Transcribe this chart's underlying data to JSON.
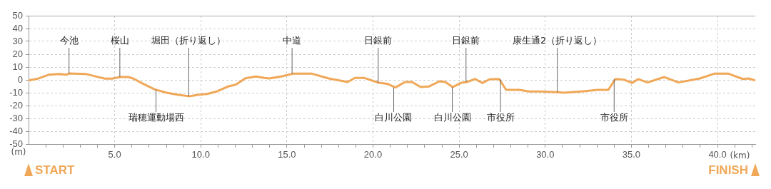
{
  "chart_data": {
    "type": "line",
    "xlabel": "(km)",
    "ylabel": "(m)",
    "x": [
      0,
      0.55,
      1.17,
      1.79,
      2.2,
      2.35,
      3.32,
      3.6,
      4.43,
      4.84,
      5.32,
      5.81,
      6.09,
      6.64,
      7.33,
      8.02,
      8.71,
      9.34,
      9.82,
      10.37,
      10.93,
      11.62,
      12.03,
      12.59,
      13.2,
      13.7,
      13.97,
      14.66,
      15.35,
      16.46,
      17.43,
      18.53,
      18.95,
      19.5,
      20.33,
      20.82,
      21.3,
      21.86,
      22.27,
      22.76,
      23.24,
      23.86,
      24.2,
      24.62,
      25.1,
      25.45,
      25.93,
      26.35,
      26.76,
      27.32,
      27.73,
      28.5,
      29.05,
      29.6,
      30.71,
      31.1,
      32.35,
      33.04,
      33.66,
      34.08,
      34.56,
      35.05,
      35.39,
      35.94,
      36.91,
      37.74,
      38.98,
      39.81,
      40.64,
      41.47,
      41.82,
      42.195
    ],
    "series": [
      {
        "color": "#f0a858",
        "values": [
          -0.4,
          1,
          4,
          4.6,
          4,
          5,
          4.6,
          3.7,
          1,
          1,
          2.2,
          2.2,
          1,
          -3,
          -7.4,
          -10,
          -11.7,
          -12.8,
          -11.7,
          -11,
          -9,
          -5,
          -3.7,
          1.3,
          2.6,
          1.5,
          1.1,
          2.6,
          4.8,
          4.8,
          1.1,
          -1.7,
          1.5,
          1.5,
          -2.2,
          -3,
          -5.9,
          -1.7,
          -1.7,
          -5.6,
          -5.2,
          -1.1,
          -1.7,
          -5.6,
          -2.4,
          -1.7,
          0.7,
          -2.4,
          0.4,
          0.7,
          -7.8,
          -7.8,
          -9,
          -9,
          -9.6,
          -10,
          -8.7,
          -7.8,
          -7.8,
          0.7,
          0.2,
          -2.4,
          0.6,
          -2,
          2.2,
          -2,
          1.1,
          4.8,
          4.8,
          0.7,
          1.1,
          -0.4
        ]
      }
    ],
    "xlim": [
      0,
      42.195
    ],
    "xticks": [
      {
        "value": 1,
        "label": null
      },
      {
        "value": 2,
        "label": null
      },
      {
        "value": 3,
        "label": null
      },
      {
        "value": 4,
        "label": null
      },
      {
        "value": 5,
        "label": "5.0"
      },
      {
        "value": 6,
        "label": null
      },
      {
        "value": 7,
        "label": null
      },
      {
        "value": 8,
        "label": null
      },
      {
        "value": 9,
        "label": null
      },
      {
        "value": 10,
        "label": "10.0"
      },
      {
        "value": 11,
        "label": null
      },
      {
        "value": 12,
        "label": null
      },
      {
        "value": 13,
        "label": null
      },
      {
        "value": 14,
        "label": null
      },
      {
        "value": 15,
        "label": "15.0"
      },
      {
        "value": 16,
        "label": null
      },
      {
        "value": 17,
        "label": null
      },
      {
        "value": 18,
        "label": null
      },
      {
        "value": 19,
        "label": null
      },
      {
        "value": 20,
        "label": "20.0"
      },
      {
        "value": 21,
        "label": null
      },
      {
        "value": 22,
        "label": null
      },
      {
        "value": 23,
        "label": null
      },
      {
        "value": 24,
        "label": null
      },
      {
        "value": 25,
        "label": "25.0"
      },
      {
        "value": 26,
        "label": null
      },
      {
        "value": 27,
        "label": null
      },
      {
        "value": 28,
        "label": null
      },
      {
        "value": 29,
        "label": null
      },
      {
        "value": 30,
        "label": "30.0"
      },
      {
        "value": 31,
        "label": null
      },
      {
        "value": 32,
        "label": null
      },
      {
        "value": 33,
        "label": null
      },
      {
        "value": 34,
        "label": null
      },
      {
        "value": 35,
        "label": "35.0"
      },
      {
        "value": 36,
        "label": null
      },
      {
        "value": 37,
        "label": null
      },
      {
        "value": 38,
        "label": null
      },
      {
        "value": 39,
        "label": null
      },
      {
        "value": 40,
        "label": "40.0"
      },
      {
        "value": 41,
        "label": null
      },
      {
        "value": 42,
        "label": null
      }
    ],
    "ylim": [
      -50,
      50
    ],
    "yticks": [
      -50,
      -40,
      -30,
      -20,
      -10,
      0,
      10,
      20,
      30,
      40,
      50
    ],
    "grid": true,
    "legend": false,
    "marker": "none",
    "line_style": "solid",
    "annotations": [
      {
        "text": "今池",
        "x": 2.35,
        "y": 5
      },
      {
        "text": "桜山",
        "x": 5.3,
        "y": 2.2
      },
      {
        "text": "堀田（折り返し）",
        "x": 9.3,
        "y": -12.8
      },
      {
        "text": "中道",
        "x": 15.3,
        "y": 4.8
      },
      {
        "text": "日銀前",
        "x": 20.3,
        "y": -2.2
      },
      {
        "text": "日銀前",
        "x": 25.4,
        "y": -1.7
      },
      {
        "text": "康生通2（折り返し）",
        "x": 30.7,
        "y": -9.6
      },
      {
        "text": "瑞穂運動場西",
        "x": 7.4,
        "y": -7.6
      },
      {
        "text": "白川公園",
        "x": 21.2,
        "y": -5.9
      },
      {
        "text": "白川公園",
        "x": 24.6,
        "y": -5.6
      },
      {
        "text": "市役所",
        "x": 27.4,
        "y": 0.5
      },
      {
        "text": "市役所",
        "x": 34.0,
        "y": 0.5
      },
      "START",
      "FINISH"
    ]
  }
}
